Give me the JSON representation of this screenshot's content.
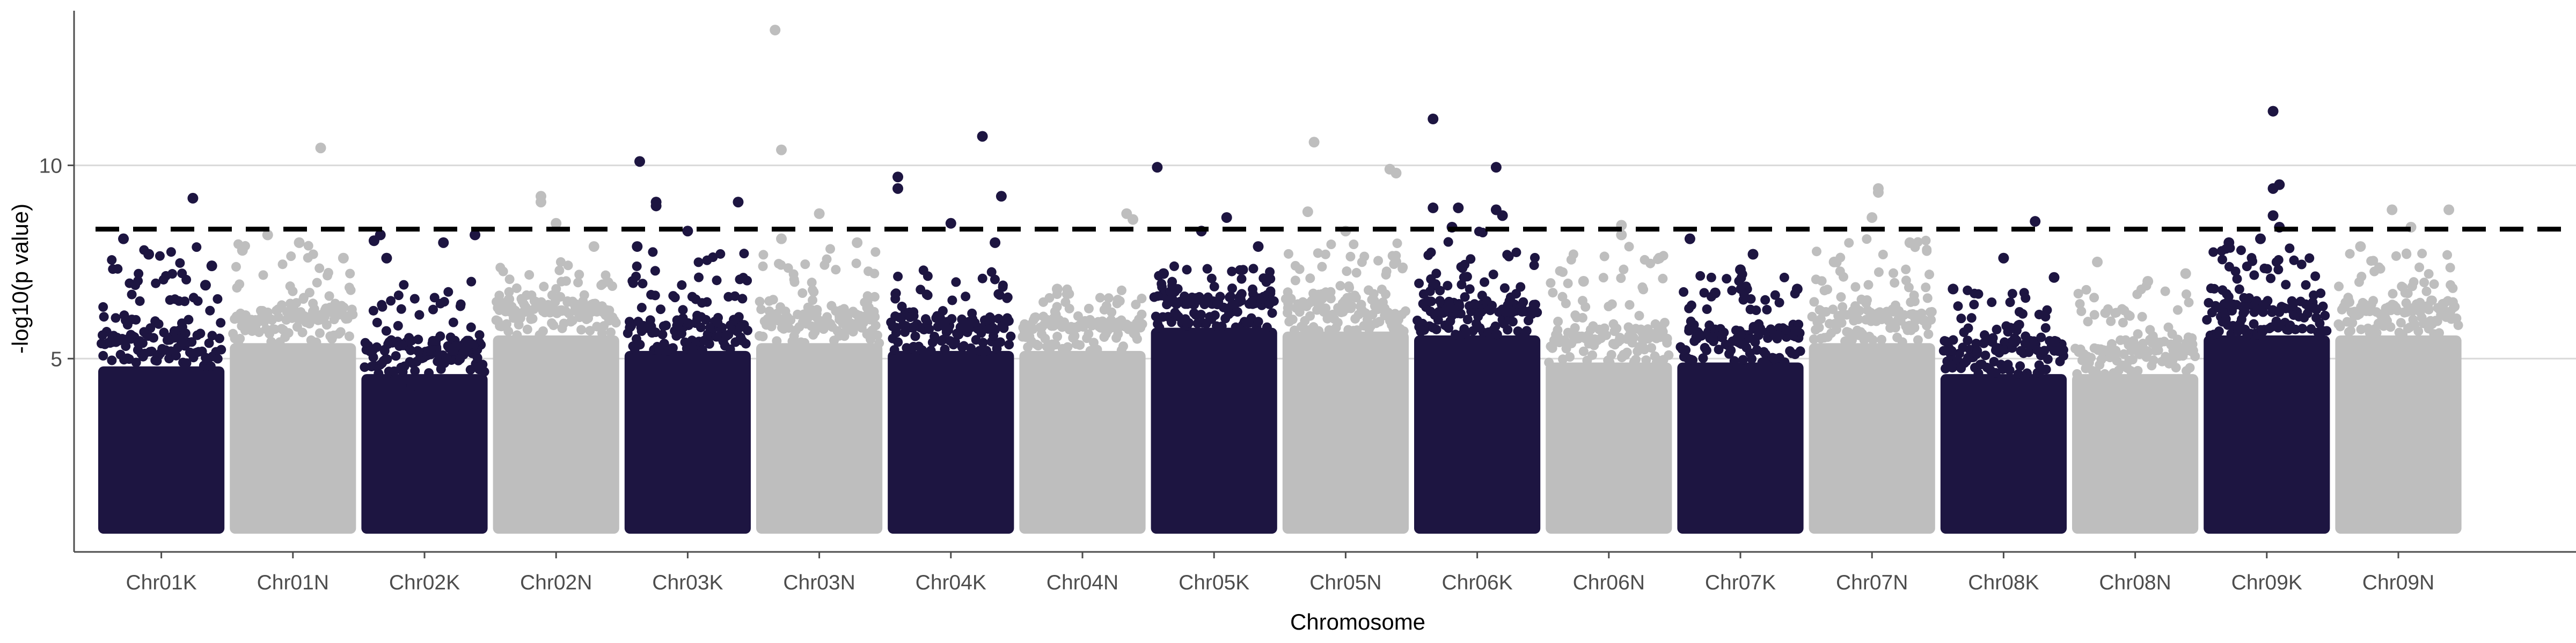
{
  "chart_data": {
    "type": "scatter",
    "title": "",
    "xlabel": "Chromosome",
    "ylabel": "-log10(p value)",
    "ylim": [
      0,
      14
    ],
    "yticks": [
      5,
      10
    ],
    "grid": "horizontal major lines",
    "legend": "none",
    "threshold": 8.35,
    "colors": {
      "odd": "#1d1541",
      "even": "#bebebe",
      "threshold": "#000000",
      "grid": "#d9d9d9",
      "axis": "#4d4d4d"
    },
    "chromosomes": [
      {
        "name": "Chr01K",
        "max": 7.9,
        "dense_max": 5.4,
        "peaks": [
          [
            0.75,
            9.15
          ],
          [
            0.2,
            8.1
          ],
          [
            0.4,
            7.7
          ],
          [
            0.9,
            7.4
          ],
          [
            0.85,
            6.9
          ]
        ]
      },
      {
        "name": "Chr01N",
        "max": 8.0,
        "dense_max": 6.0,
        "peaks": [
          [
            0.72,
            10.45
          ],
          [
            0.3,
            8.2
          ],
          [
            0.55,
            8.0
          ],
          [
            0.9,
            7.6
          ],
          [
            0.1,
            7.8
          ]
        ]
      },
      {
        "name": "Chr02K",
        "max": 7.0,
        "dense_max": 5.2,
        "peaks": [
          [
            0.15,
            8.2
          ],
          [
            0.1,
            8.05
          ],
          [
            0.65,
            8.0
          ],
          [
            0.9,
            8.2
          ],
          [
            0.2,
            7.6
          ],
          [
            0.4,
            4.3
          ]
        ]
      },
      {
        "name": "Chr02N",
        "max": 7.6,
        "dense_max": 6.2,
        "peaks": [
          [
            0.38,
            9.2
          ],
          [
            0.38,
            9.05
          ],
          [
            0.5,
            8.5
          ],
          [
            0.8,
            7.9
          ]
        ]
      },
      {
        "name": "Chr03K",
        "max": 7.9,
        "dense_max": 5.8,
        "peaks": [
          [
            0.12,
            10.1
          ],
          [
            0.25,
            9.05
          ],
          [
            0.25,
            8.95
          ],
          [
            0.5,
            8.3
          ],
          [
            0.9,
            9.05
          ],
          [
            0.1,
            7.9
          ]
        ]
      },
      {
        "name": "Chr03N",
        "max": 8.0,
        "dense_max": 6.0,
        "peaks": [
          [
            0.15,
            13.5
          ],
          [
            0.2,
            10.4
          ],
          [
            0.5,
            8.75
          ],
          [
            0.2,
            8.1
          ],
          [
            0.8,
            8.0
          ]
        ]
      },
      {
        "name": "Chr04K",
        "max": 7.3,
        "dense_max": 5.8,
        "peaks": [
          [
            0.08,
            9.7
          ],
          [
            0.08,
            9.4
          ],
          [
            0.75,
            10.75
          ],
          [
            0.5,
            8.5
          ],
          [
            0.9,
            9.2
          ],
          [
            0.85,
            8.0
          ]
        ]
      },
      {
        "name": "Chr04N",
        "max": 7.0,
        "dense_max": 5.8,
        "peaks": [
          [
            0.85,
            8.75
          ],
          [
            0.9,
            8.6
          ],
          [
            0.3,
            6.8
          ]
        ]
      },
      {
        "name": "Chr05K",
        "max": 7.4,
        "dense_max": 6.4,
        "peaks": [
          [
            0.05,
            9.95
          ],
          [
            0.6,
            8.65
          ],
          [
            0.4,
            8.3
          ],
          [
            0.85,
            7.9
          ],
          [
            0.1,
            7.2
          ]
        ]
      },
      {
        "name": "Chr05N",
        "max": 8.2,
        "dense_max": 6.3,
        "peaks": [
          [
            0.25,
            10.6
          ],
          [
            0.85,
            9.9
          ],
          [
            0.9,
            9.8
          ],
          [
            0.2,
            8.8
          ],
          [
            0.5,
            8.3
          ]
        ]
      },
      {
        "name": "Chr06K",
        "max": 8.3,
        "dense_max": 6.2,
        "peaks": [
          [
            0.15,
            11.2
          ],
          [
            0.65,
            9.95
          ],
          [
            0.15,
            8.9
          ],
          [
            0.35,
            8.9
          ],
          [
            0.65,
            8.85
          ],
          [
            0.7,
            8.7
          ],
          [
            0.3,
            8.4
          ]
        ]
      },
      {
        "name": "Chr06N",
        "max": 7.9,
        "dense_max": 5.5,
        "peaks": [
          [
            0.6,
            8.45
          ],
          [
            0.6,
            8.2
          ],
          [
            0.3,
            7.0
          ],
          [
            0.9,
            7.6
          ]
        ]
      },
      {
        "name": "Chr07K",
        "max": 7.2,
        "dense_max": 5.5,
        "peaks": [
          [
            0.1,
            8.1
          ],
          [
            0.6,
            7.7
          ],
          [
            0.5,
            7.3
          ],
          [
            0.95,
            6.8
          ],
          [
            0.3,
            6.7
          ]
        ]
      },
      {
        "name": "Chr07N",
        "max": 8.2,
        "dense_max": 6.0,
        "peaks": [
          [
            0.55,
            9.4
          ],
          [
            0.55,
            9.3
          ],
          [
            0.5,
            8.65
          ],
          [
            0.8,
            8.0
          ],
          [
            0.2,
            7.5
          ]
        ]
      },
      {
        "name": "Chr08K",
        "max": 6.8,
        "dense_max": 5.2,
        "peaks": [
          [
            0.75,
            8.55
          ],
          [
            0.5,
            7.6
          ],
          [
            0.9,
            7.1
          ],
          [
            0.1,
            6.8
          ]
        ]
      },
      {
        "name": "Chr08N",
        "max": 7.0,
        "dense_max": 5.2,
        "peaks": [
          [
            0.2,
            7.5
          ],
          [
            0.6,
            7.0
          ],
          [
            0.9,
            7.2
          ]
        ]
      },
      {
        "name": "Chr09K",
        "max": 8.0,
        "dense_max": 6.2,
        "peaks": [
          [
            0.55,
            11.4
          ],
          [
            0.6,
            9.5
          ],
          [
            0.55,
            9.4
          ],
          [
            0.55,
            8.7
          ],
          [
            0.45,
            8.1
          ],
          [
            0.2,
            8.0
          ],
          [
            0.6,
            8.4
          ]
        ]
      },
      {
        "name": "Chr09N",
        "max": 7.8,
        "dense_max": 6.2,
        "peaks": [
          [
            0.45,
            8.85
          ],
          [
            0.9,
            8.85
          ],
          [
            0.6,
            8.4
          ],
          [
            0.2,
            7.9
          ]
        ]
      }
    ]
  }
}
